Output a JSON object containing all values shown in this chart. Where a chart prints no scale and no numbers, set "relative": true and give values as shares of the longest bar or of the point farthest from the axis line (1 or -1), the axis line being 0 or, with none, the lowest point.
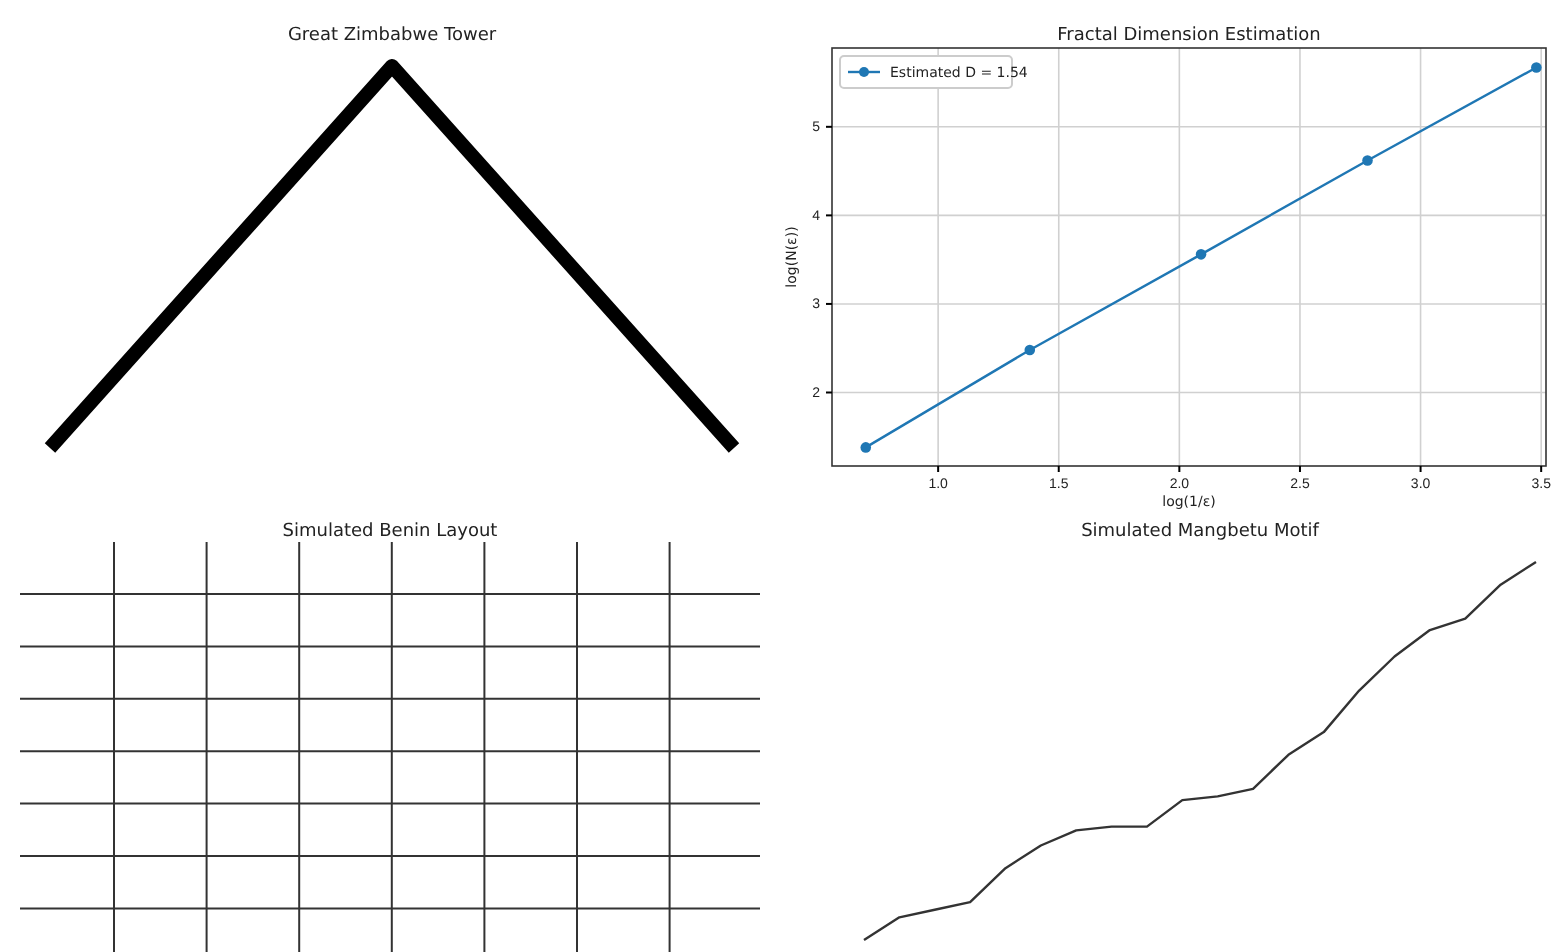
{
  "chart_data": [
    {
      "type": "line",
      "title": "Great Zimbabwe Tower",
      "relative": true,
      "categories": [
        null,
        null,
        null
      ],
      "series": [
        {
          "color": "#000000",
          "values": [
            0,
            1,
            0
          ]
        }
      ]
    },
    {
      "type": "line",
      "title": "Fractal Dimension Estimation",
      "xlabel": "log(1/ε)",
      "ylabel": "log(N(ε))",
      "x": [
        0.7,
        1.38,
        2.09,
        2.78,
        3.48
      ],
      "xlim": [
        0.56,
        3.52
      ],
      "ylim": [
        1.17,
        5.89
      ],
      "xticks": [
        {
          "value": 1.0,
          "label": "1.0"
        },
        {
          "value": 1.5,
          "label": "1.5"
        },
        {
          "value": 2.0,
          "label": "2.0"
        },
        {
          "value": 2.5,
          "label": "2.5"
        },
        {
          "value": 3.0,
          "label": "3.0"
        },
        {
          "value": 3.5,
          "label": "3.5"
        }
      ],
      "yticks": [
        2,
        3,
        4,
        5
      ],
      "grid": true,
      "legend": "top left",
      "marker": "circle",
      "series": [
        {
          "name": "Estimated D = 1.54",
          "color": "#1f77b4",
          "values": [
            1.38,
            2.48,
            3.56,
            4.62,
            5.67
          ]
        }
      ]
    },
    {
      "type": "other",
      "title": "Simulated Benin Layout"
    },
    {
      "type": "line",
      "title": "Simulated Mangbetu Motif",
      "relative": true,
      "categories": [
        null,
        null,
        null,
        null,
        null,
        null,
        null,
        null,
        null,
        null,
        null,
        null,
        null,
        null,
        null,
        null,
        null,
        null,
        null,
        null
      ],
      "series": [
        {
          "color": "#333333",
          "values": [
            0,
            0.06,
            0.08,
            0.1,
            0.19,
            0.25,
            0.29,
            0.3,
            0.3,
            0.37,
            0.38,
            0.4,
            0.49,
            0.55,
            0.66,
            0.75,
            0.82,
            0.85,
            0.94,
            1
          ]
        }
      ]
    }
  ]
}
